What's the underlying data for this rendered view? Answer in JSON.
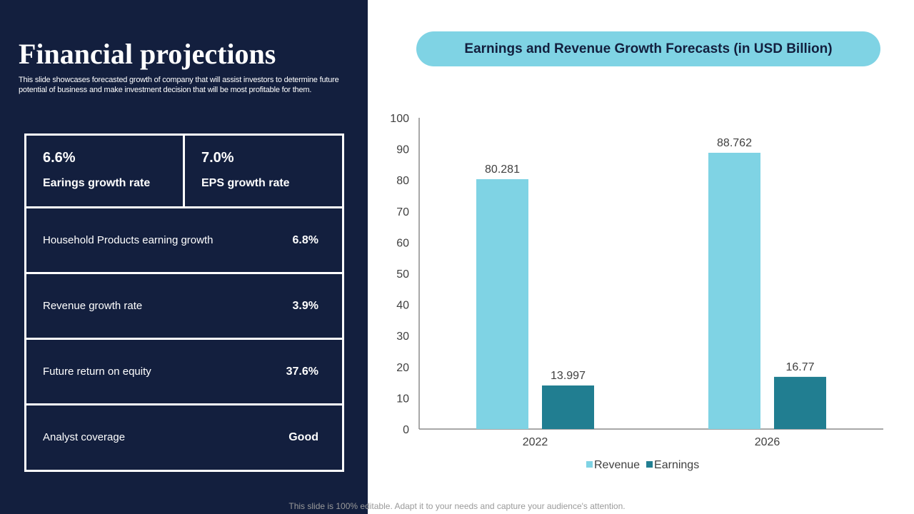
{
  "slide": {
    "title": "Financial projections",
    "subtitle": "This slide showcases forecasted growth of company that will assist investors to determine future potential of business and make investment decision that will be most profitable for them.",
    "footer": "This slide is 100% editable. Adapt it to your needs and capture your audience's attention."
  },
  "metrics": {
    "top": [
      {
        "value": "6.6%",
        "label": "Earings growth rate"
      },
      {
        "value": "7.0%",
        "label": "EPS growth rate"
      }
    ],
    "rows": [
      {
        "label": "Household Products earning growth",
        "value": "6.8%"
      },
      {
        "label": "Revenue growth rate",
        "value": "3.9%"
      },
      {
        "label": "Future return on equity",
        "value": "37.6%"
      },
      {
        "label": "Analyst coverage",
        "value": "Good"
      }
    ]
  },
  "chart_data": {
    "type": "bar",
    "title": "Earnings and Revenue Growth Forecasts (in USD Billion)",
    "categories": [
      "2022",
      "2026"
    ],
    "series": [
      {
        "name": "Revenue",
        "values": [
          80.281,
          88.762
        ],
        "color": "#7fd3e4"
      },
      {
        "name": "Earnings",
        "values": [
          13.997,
          16.77
        ],
        "color": "#217e91"
      }
    ],
    "data_labels": [
      [
        "80.281",
        "88.762"
      ],
      [
        "13.997",
        "16.77"
      ]
    ],
    "ylim": [
      0,
      100
    ],
    "yticks": [
      0,
      10,
      20,
      30,
      40,
      50,
      60,
      70,
      80,
      90,
      100
    ],
    "xlabel": "",
    "ylabel": "",
    "legend": "bottom",
    "grid": false
  },
  "colors": {
    "panel": "#131f3e",
    "accent": "#7fd3e4",
    "earnings": "#217e91"
  }
}
